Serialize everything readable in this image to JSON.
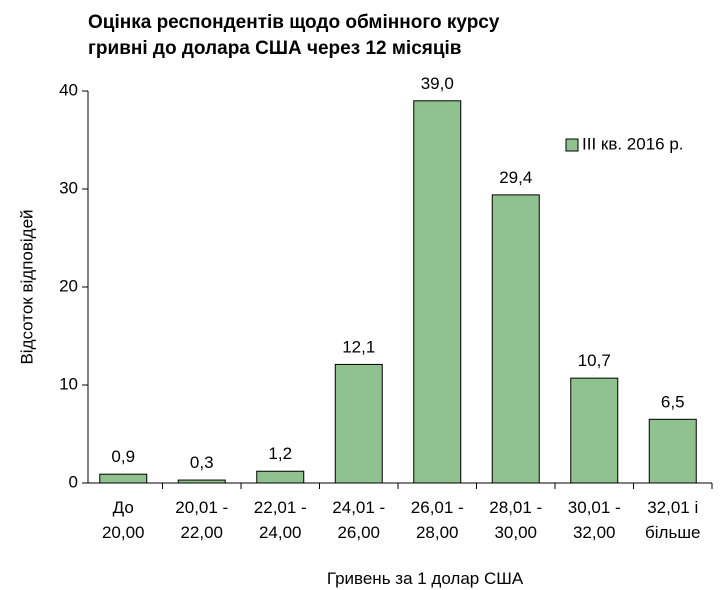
{
  "chart_data": {
    "type": "bar",
    "title": [
      "Оцінка респондентів щодо обмінного курсу",
      "гривні до долара США через 12 місяців"
    ],
    "x_label": "Гривень за 1 долар США",
    "y_label": "Відсоток відповідей",
    "categories": [
      [
        "До",
        "20,00"
      ],
      [
        "20,01 -",
        "22,00"
      ],
      [
        "22,01 -",
        "24,00"
      ],
      [
        "24,01 -",
        "26,00"
      ],
      [
        "26,01 -",
        "28,00"
      ],
      [
        "28,01 -",
        "30,00"
      ],
      [
        "30,01 -",
        "32,00"
      ],
      [
        "32,01 і",
        "більше"
      ]
    ],
    "series": [
      {
        "name": "ІІІ кв. 2016 р.",
        "color": "#8fc28f",
        "values": [
          0.9,
          0.3,
          1.2,
          12.1,
          39.0,
          29.4,
          10.7,
          6.5
        ],
        "value_labels": [
          "0,9",
          "0,3",
          "1,2",
          "12,1",
          "39,0",
          "29,4",
          "10,7",
          "6,5"
        ]
      }
    ],
    "ylim": [
      0,
      40
    ],
    "yticks": [
      0,
      10,
      20,
      30,
      40
    ],
    "legend": "upper right"
  }
}
